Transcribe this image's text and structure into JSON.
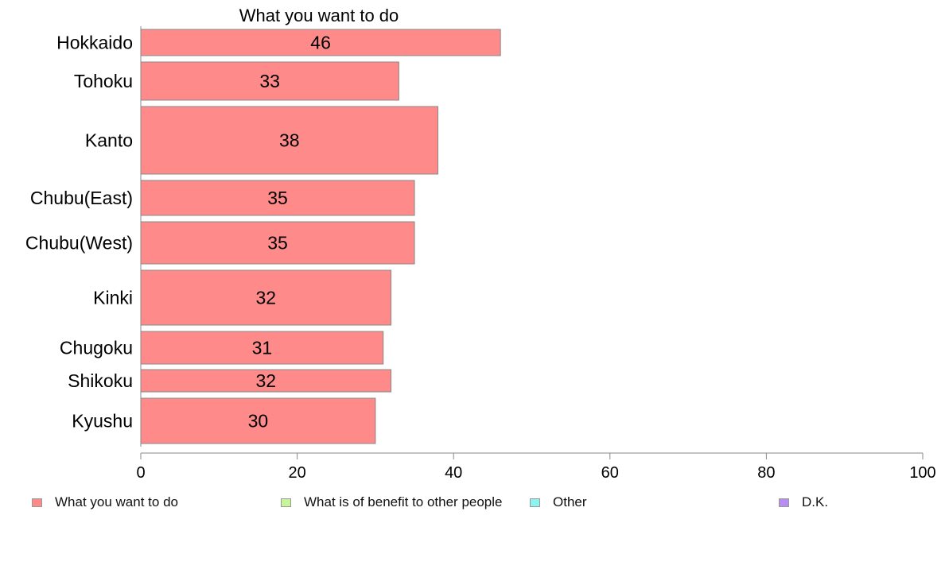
{
  "chart_data": {
    "type": "bar",
    "orientation": "horizontal",
    "title": "What you want to do",
    "categories": [
      "Hokkaido",
      "Tohoku",
      "Kanto",
      "Chubu(East)",
      "Chubu(West)",
      "Kinki",
      "Chugoku",
      "Shikoku",
      "Kyushu"
    ],
    "values": [
      46,
      33,
      38,
      35,
      35,
      32,
      31,
      32,
      30
    ],
    "data_labels": [
      "46",
      "33",
      "38",
      "35",
      "35",
      "32",
      "31",
      "32",
      "30"
    ],
    "xlim": [
      0,
      100
    ],
    "xticks": [
      0,
      20,
      40,
      60,
      80,
      100
    ],
    "xlabel": "",
    "ylabel": "",
    "grid": false,
    "legend_position": "bottom",
    "series_colors": {
      "bar": "#ff8a8a",
      "bar_border": "#888888"
    },
    "legend": [
      {
        "label": "What you want to do",
        "color": "#ff8a8a"
      },
      {
        "label": "What is of benefit to other people",
        "color": "#c6f59a"
      },
      {
        "label": "Other",
        "color": "#8ef2ef"
      },
      {
        "label": "D.K.",
        "color": "#b98cf2"
      }
    ]
  }
}
